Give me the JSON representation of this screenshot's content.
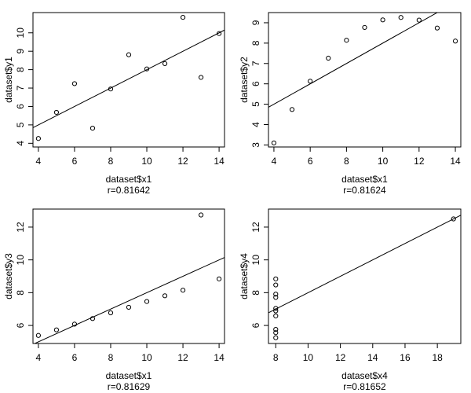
{
  "chart_data": [
    {
      "type": "scatter",
      "xlabel": "dataset$x1",
      "ylabel": "dataset$y1",
      "note": "r=0.81642",
      "xlim": [
        3.7,
        14.3
      ],
      "ylim": [
        3.8,
        11.1
      ],
      "xticks": [
        4,
        6,
        8,
        10,
        12,
        14
      ],
      "yticks": [
        4,
        5,
        6,
        7,
        8,
        9,
        10
      ],
      "x": [
        10,
        8,
        13,
        9,
        11,
        14,
        6,
        4,
        12,
        7,
        5
      ],
      "y": [
        8.04,
        6.95,
        7.58,
        8.81,
        8.33,
        9.96,
        7.24,
        4.26,
        10.84,
        4.82,
        5.68
      ],
      "fit_line": {
        "intercept": 3.0,
        "slope": 0.5
      }
    },
    {
      "type": "scatter",
      "xlabel": "dataset$x1",
      "ylabel": "dataset$y2",
      "note": "r=0.81624",
      "xlim": [
        3.7,
        14.3
      ],
      "ylim": [
        2.9,
        9.5
      ],
      "xticks": [
        4,
        6,
        8,
        10,
        12,
        14
      ],
      "yticks": [
        3,
        4,
        5,
        6,
        7,
        8,
        9
      ],
      "x": [
        10,
        8,
        13,
        9,
        11,
        14,
        6,
        4,
        12,
        7,
        5
      ],
      "y": [
        9.14,
        8.14,
        8.74,
        8.77,
        9.26,
        8.1,
        6.13,
        3.1,
        9.13,
        7.26,
        4.74
      ],
      "fit_line": {
        "intercept": 3.0,
        "slope": 0.5
      }
    },
    {
      "type": "scatter",
      "xlabel": "dataset$x1",
      "ylabel": "dataset$y3",
      "note": "r=0.81629",
      "xlim": [
        3.7,
        14.3
      ],
      "ylim": [
        4.9,
        13.1
      ],
      "xticks": [
        4,
        6,
        8,
        10,
        12,
        14
      ],
      "yticks": [
        6,
        8,
        10,
        12
      ],
      "x": [
        10,
        8,
        13,
        9,
        11,
        14,
        6,
        4,
        12,
        7,
        5
      ],
      "y": [
        7.46,
        6.77,
        12.74,
        7.11,
        7.81,
        8.84,
        6.08,
        5.39,
        8.15,
        6.42,
        5.73
      ],
      "fit_line": {
        "intercept": 3.0,
        "slope": 0.5
      }
    },
    {
      "type": "scatter",
      "xlabel": "dataset$x4",
      "ylabel": "dataset$y4",
      "note": "r=0.81652",
      "xlim": [
        7.55,
        19.45
      ],
      "ylim": [
        4.9,
        13.1
      ],
      "xticks": [
        8,
        10,
        12,
        14,
        16,
        18
      ],
      "yticks": [
        6,
        8,
        10,
        12
      ],
      "x": [
        8,
        8,
        8,
        8,
        8,
        8,
        8,
        19,
        8,
        8,
        8
      ],
      "y": [
        6.58,
        5.76,
        7.71,
        8.84,
        8.47,
        7.04,
        5.25,
        12.5,
        5.56,
        7.91,
        6.89
      ],
      "fit_line": {
        "intercept": 3.0,
        "slope": 0.5
      }
    }
  ]
}
